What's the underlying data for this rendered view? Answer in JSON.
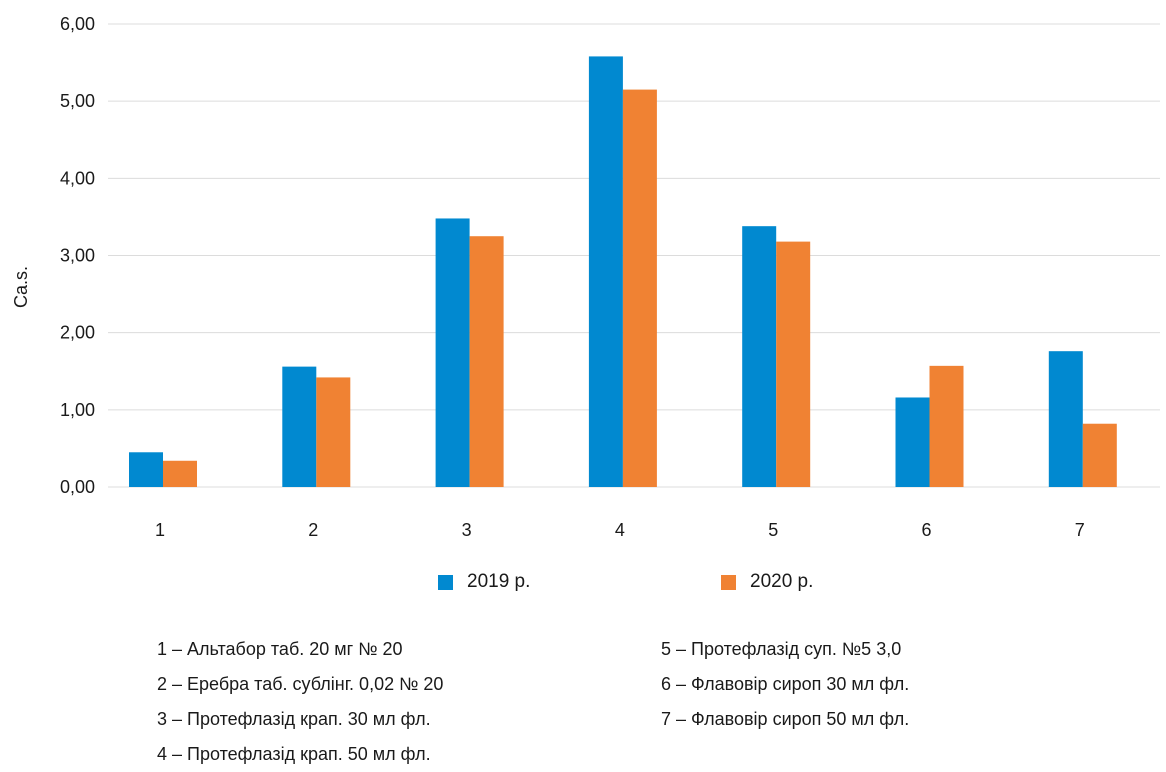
{
  "chart_data": {
    "type": "bar",
    "categories": [
      "1",
      "2",
      "3",
      "4",
      "5",
      "6",
      "7"
    ],
    "series": [
      {
        "name": "2019 р.",
        "color": "#0189d0",
        "values": [
          0.45,
          1.56,
          3.48,
          5.58,
          3.38,
          1.16,
          1.76
        ]
      },
      {
        "name": "2020 р.",
        "color": "#f08233",
        "values": [
          0.34,
          1.42,
          3.25,
          5.15,
          3.18,
          1.57,
          0.82
        ]
      }
    ],
    "ylabel": "Ca.s.",
    "xlabel": "",
    "ylim": [
      0,
      6
    ],
    "yticks": [
      "0,00",
      "1,00",
      "2,00",
      "3,00",
      "4,00",
      "5,00",
      "6,00"
    ],
    "grid": true,
    "legend_position": "bottom"
  },
  "notes": {
    "left": [
      "1 – Альтабор таб. 20 мг № 20",
      "2 – Еребра таб. сублінг. 0,02 № 20",
      "3 – Протефлазід крап. 30 мл фл.",
      "4 – Протефлазід крап. 50 мл фл."
    ],
    "right": [
      "5 – Протефлазід суп. №5 3,0",
      "6 – Флавовір сироп 30 мл фл.",
      "7 – Флавовір сироп 50 мл фл."
    ]
  }
}
